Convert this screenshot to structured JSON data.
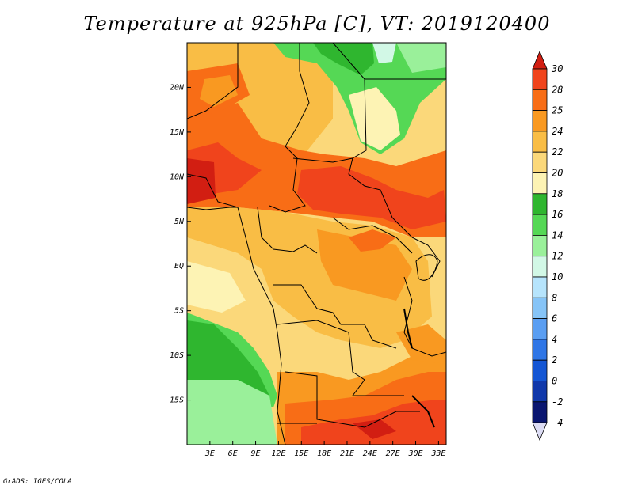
{
  "title": "Temperature at 925hPa [C], VT: 2019120400",
  "credit": "GrADS: IGES/COLA",
  "map": {
    "variable": "Temperature",
    "level": "925hPa",
    "units": "C",
    "valid_time": "2019120400",
    "lon_range": [
      0,
      34
    ],
    "lat_range": [
      -20,
      25
    ],
    "x_ticks": [
      {
        "value": 3,
        "label": "3E"
      },
      {
        "value": 6,
        "label": "6E"
      },
      {
        "value": 9,
        "label": "9E"
      },
      {
        "value": 12,
        "label": "12E"
      },
      {
        "value": 15,
        "label": "15E"
      },
      {
        "value": 18,
        "label": "18E"
      },
      {
        "value": 21,
        "label": "21E"
      },
      {
        "value": 24,
        "label": "24E"
      },
      {
        "value": 27,
        "label": "27E"
      },
      {
        "value": 30,
        "label": "30E"
      },
      {
        "value": 33,
        "label": "33E"
      }
    ],
    "y_ticks": [
      {
        "value": 20,
        "label": "20N"
      },
      {
        "value": 15,
        "label": "15N"
      },
      {
        "value": 10,
        "label": "10N"
      },
      {
        "value": 5,
        "label": "5N"
      },
      {
        "value": 0,
        "label": "EQ"
      },
      {
        "value": -5,
        "label": "5S"
      },
      {
        "value": -10,
        "label": "10S"
      },
      {
        "value": -15,
        "label": "15S"
      }
    ]
  },
  "colorbar": {
    "labels": [
      "30",
      "28",
      "25",
      "24",
      "22",
      "20",
      "18",
      "16",
      "14",
      "12",
      "10",
      "8",
      "6",
      "4",
      "2",
      "0",
      "-2",
      "-4"
    ],
    "colors": [
      "#d21e12",
      "#f0441c",
      "#f86d16",
      "#f99921",
      "#f9bd45",
      "#fbd87a",
      "#fdf3b4",
      "#2fb62f",
      "#55d855",
      "#9af09a",
      "#d2f8e6",
      "#b6e4fc",
      "#86c4f7",
      "#5a9ef2",
      "#2f76e6",
      "#1456d4",
      "#1038aa",
      "#0a1670",
      "#dcdcf4"
    ]
  }
}
